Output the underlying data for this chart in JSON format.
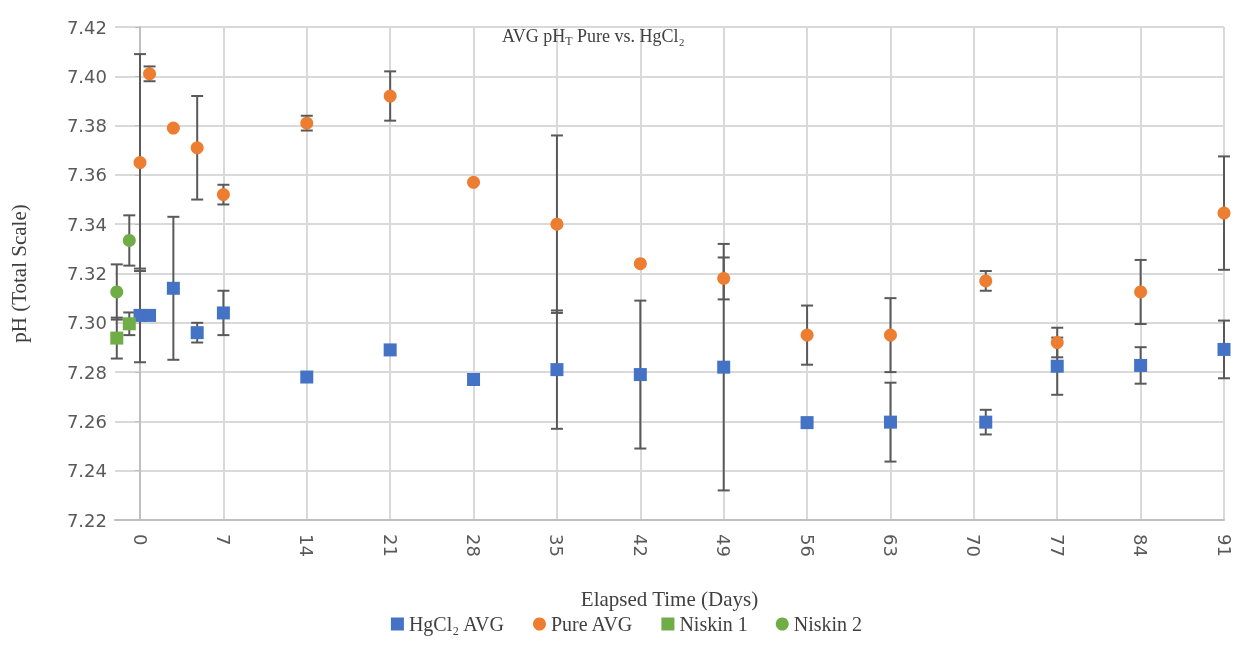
{
  "chart_data": {
    "type": "scatter",
    "title": "AVG pH$_{T}$ Pure vs. HgCl₂",
    "xlabel": "Elapsed Time (Days)",
    "ylabel": "pH (Total Scale)",
    "xlim": [
      -2.1,
      91
    ],
    "xticks": [
      0,
      7,
      14,
      21,
      28,
      35,
      42,
      49,
      56,
      63,
      70,
      77,
      84,
      91
    ],
    "ylim": [
      7.22,
      7.42
    ],
    "yticks": [
      7.22,
      7.24,
      7.26,
      7.28,
      {
        "value": 7.3,
        "label": "7.30"
      },
      7.32,
      7.34,
      7.36,
      7.38,
      {
        "value": 7.4,
        "label": "7.40"
      },
      7.42
    ],
    "grid": true,
    "legend": "bottom",
    "series": [
      {
        "name": "HgCl₂ AVG",
        "color": "#4472c4",
        "marker": "square",
        "x": [
          0,
          0.8,
          2.8,
          4.8,
          7,
          14,
          21,
          28,
          35,
          42,
          49,
          56,
          63,
          71,
          77,
          84,
          91
        ],
        "values": [
          7.303,
          7.303,
          7.314,
          7.296,
          7.304,
          7.278,
          7.289,
          7.277,
          7.281,
          7.279,
          7.282,
          7.2595,
          7.2597,
          7.2597,
          7.2824,
          7.2827,
          7.2892
        ],
        "errors": [
          0.019,
          null,
          0.029,
          0.004,
          0.009,
          null,
          null,
          null,
          0.024,
          0.03,
          0.05,
          null,
          0.016,
          0.005,
          0.0116,
          0.0074,
          0.0117
        ]
      },
      {
        "name": "Pure AVG",
        "color": "#ed7d31",
        "marker": "circle",
        "x": [
          0,
          0.8,
          2.8,
          4.8,
          7,
          14,
          21,
          28,
          35,
          42,
          49,
          56,
          63,
          71,
          77,
          84,
          91
        ],
        "values": [
          7.365,
          7.401,
          7.379,
          7.371,
          7.352,
          7.381,
          7.392,
          7.357,
          7.34,
          7.324,
          7.318,
          7.295,
          7.295,
          7.317,
          7.292,
          7.3125,
          7.3445
        ],
        "errors": [
          0.044,
          0.003,
          null,
          0.021,
          0.004,
          0.003,
          0.01,
          null,
          0.036,
          null,
          0.0085,
          0.012,
          0.015,
          0.004,
          0.006,
          0.013,
          0.023
        ]
      },
      {
        "name": "Niskin 1",
        "color": "#70ad47",
        "marker": "square",
        "x": [
          -1.95,
          -0.9
        ],
        "values": [
          7.2938,
          7.2996
        ],
        "errors": [
          0.0083,
          0.0046
        ]
      },
      {
        "name": "Niskin 2",
        "color": "#70ad47",
        "marker": "circle",
        "x": [
          -1.95,
          -0.9
        ],
        "values": [
          7.3125,
          7.3334
        ],
        "errors": [
          0.0112,
          0.0102
        ]
      }
    ]
  }
}
